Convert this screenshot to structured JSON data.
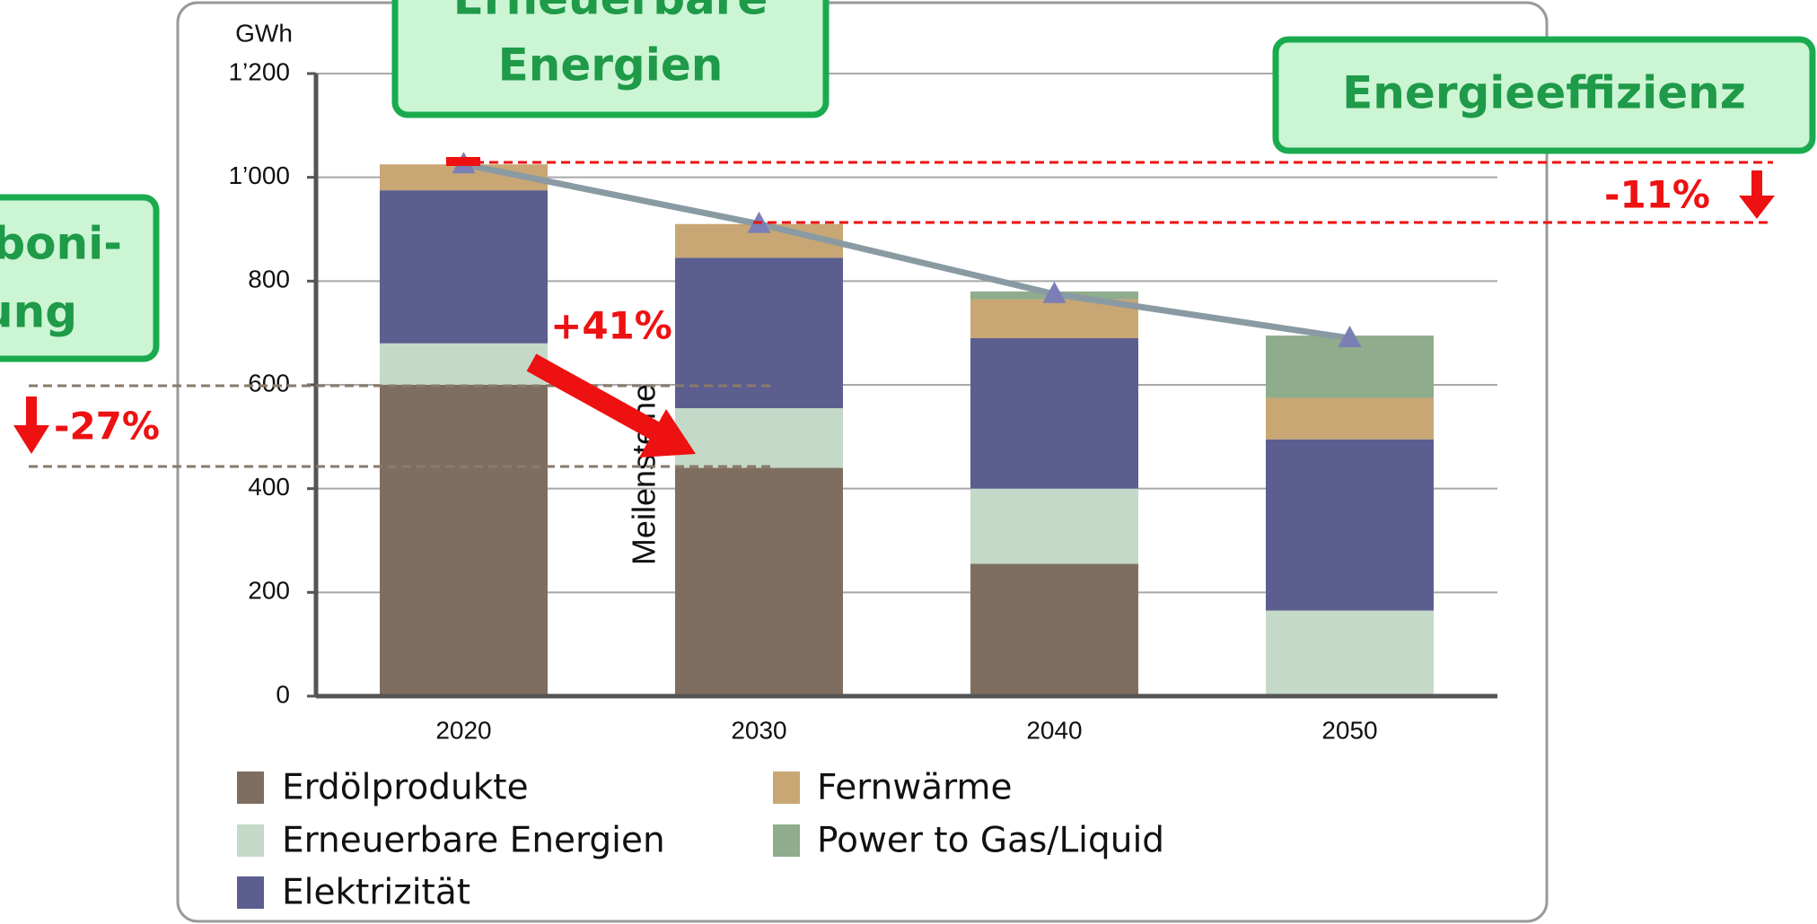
{
  "chart_data": {
    "type": "bar",
    "stacked": true,
    "y_label": "GWh",
    "categories": [
      "2020",
      "2030",
      "2040",
      "2050"
    ],
    "series": [
      {
        "name": "Erdölprodukte",
        "color": "#7f6e5f",
        "values": [
          600,
          440,
          255,
          0
        ]
      },
      {
        "name": "Erneuerbare Energien",
        "color": "#c5d9c8",
        "values": [
          80,
          115,
          145,
          165
        ]
      },
      {
        "name": "Elektrizität",
        "color": "#5c5e8f",
        "values": [
          295,
          290,
          290,
          330
        ]
      },
      {
        "name": "Fernwärme",
        "color": "#c8a775",
        "values": [
          50,
          65,
          75,
          80
        ]
      },
      {
        "name": "Power to Gas/Liquid",
        "color": "#8fac8c",
        "values": [
          0,
          0,
          15,
          120
        ]
      },
      {
        "name": "Meilensteine",
        "type": "line",
        "color": "#8a9aa3",
        "marker_color": "#7b7fb5",
        "values": [
          1025,
          910,
          775,
          690
        ]
      }
    ],
    "ylim": [
      0,
      1200
    ],
    "yticks": [
      0,
      200,
      400,
      600,
      800,
      {
        "value": 1000,
        "label": "1’000"
      },
      {
        "value": 1200,
        "label": "1’200"
      }
    ],
    "grid": true,
    "annotations": {
      "boxes": [
        [
          "Erneuerbare",
          "Energien"
        ],
        [
          "Energieeffizienz"
        ],
        [
          "Dekarboni-",
          "sierung"
        ]
      ],
      "labels": [
        "-11%",
        "+41%",
        "-27%"
      ]
    }
  }
}
